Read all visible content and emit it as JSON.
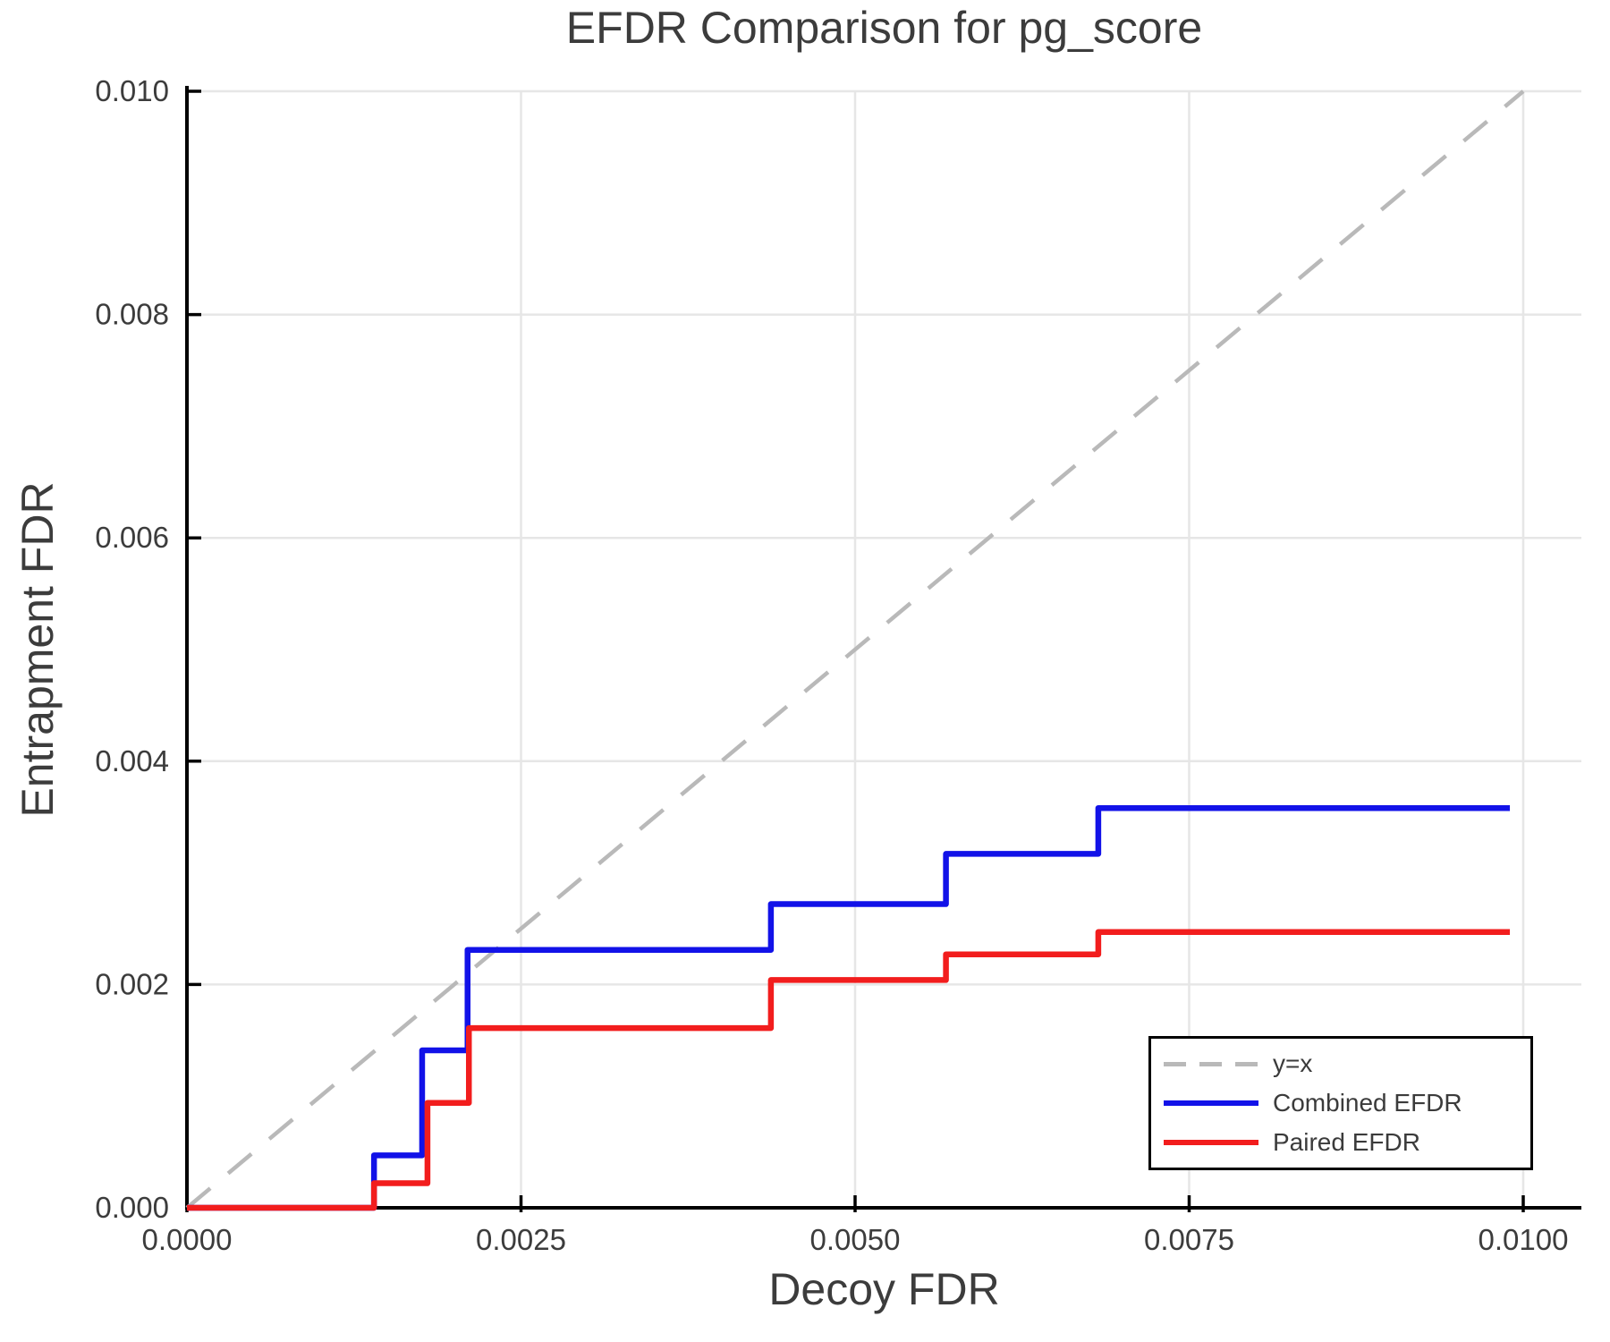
{
  "chart_data": {
    "type": "line",
    "title": "EFDR Comparison for pg_score",
    "xlabel": "Decoy FDR",
    "ylabel": "Entrapment FDR",
    "xlim": [
      0,
      0.0104
    ],
    "ylim": [
      0,
      0.01
    ],
    "grid": true,
    "legend_position": "lower right",
    "colors": {
      "grid": "#e6e6e6",
      "text": "#3c3c3c",
      "axis": "#000000",
      "background": "#ffffff"
    },
    "x_ticks": [
      {
        "value": 0.0,
        "label": "0.0000"
      },
      {
        "value": 0.0025,
        "label": "0.0025"
      },
      {
        "value": 0.005,
        "label": "0.0050"
      },
      {
        "value": 0.0075,
        "label": "0.0075"
      },
      {
        "value": 0.01,
        "label": "0.0100"
      }
    ],
    "y_ticks": [
      {
        "value": 0.0,
        "label": "0.000"
      },
      {
        "value": 0.002,
        "label": "0.002"
      },
      {
        "value": 0.004,
        "label": "0.004"
      },
      {
        "value": 0.006,
        "label": "0.006"
      },
      {
        "value": 0.008,
        "label": "0.008"
      },
      {
        "value": 0.01,
        "label": "0.010"
      }
    ],
    "series": [
      {
        "name": "y=x",
        "style": "dashed",
        "color": "#b9b9b9",
        "width": 4.5,
        "points": [
          [
            0,
            0
          ],
          [
            0.01,
            0.01
          ]
        ]
      },
      {
        "name": "Combined EFDR",
        "style": "solid",
        "color": "#1212e8",
        "width": 6.5,
        "points": [
          [
            0.0,
            0.0
          ],
          [
            0.0014,
            0.0
          ],
          [
            0.0014,
            0.00047
          ],
          [
            0.00176,
            0.00047
          ],
          [
            0.00176,
            0.00141
          ],
          [
            0.0021,
            0.00141
          ],
          [
            0.0021,
            0.00231
          ],
          [
            0.00437,
            0.00231
          ],
          [
            0.00437,
            0.00272
          ],
          [
            0.00568,
            0.00272
          ],
          [
            0.00568,
            0.00317
          ],
          [
            0.00682,
            0.00317
          ],
          [
            0.00682,
            0.00358
          ],
          [
            0.0099,
            0.00358
          ]
        ]
      },
      {
        "name": "Paired EFDR",
        "style": "solid",
        "color": "#f21d1d",
        "width": 6.5,
        "points": [
          [
            0.0,
            0.0
          ],
          [
            0.0014,
            0.0
          ],
          [
            0.0014,
            0.00022
          ],
          [
            0.0018,
            0.00022
          ],
          [
            0.0018,
            0.00094
          ],
          [
            0.00211,
            0.00094
          ],
          [
            0.00211,
            0.00161
          ],
          [
            0.00437,
            0.00161
          ],
          [
            0.00437,
            0.00204
          ],
          [
            0.00568,
            0.00204
          ],
          [
            0.00568,
            0.00227
          ],
          [
            0.00682,
            0.00227
          ],
          [
            0.00682,
            0.00247
          ],
          [
            0.0099,
            0.00247
          ]
        ]
      }
    ]
  }
}
